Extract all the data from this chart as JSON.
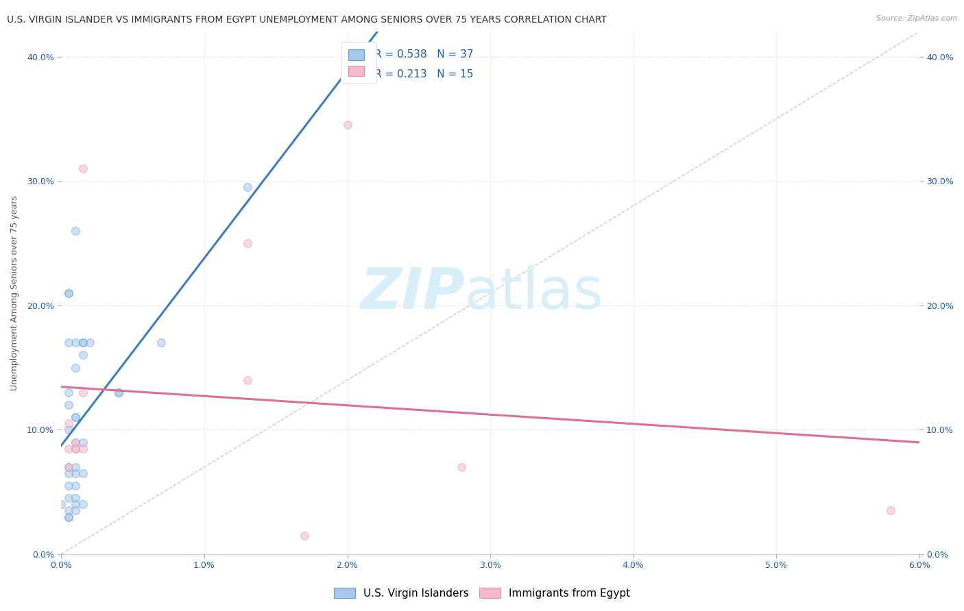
{
  "title": "U.S. VIRGIN ISLANDER VS IMMIGRANTS FROM EGYPT UNEMPLOYMENT AMONG SENIORS OVER 75 YEARS CORRELATION CHART",
  "source": "Source: ZipAtlas.com",
  "xlabel": "",
  "ylabel": "Unemployment Among Seniors over 75 years",
  "xlim": [
    0.0,
    0.06
  ],
  "ylim": [
    0.0,
    0.42
  ],
  "xticks": [
    0.0,
    0.01,
    0.02,
    0.03,
    0.04,
    0.05,
    0.06
  ],
  "yticks": [
    0.0,
    0.1,
    0.2,
    0.3,
    0.4
  ],
  "series1_name": "U.S. Virgin Islanders",
  "series1_color": "#a8c8f0",
  "series1_edge_color": "#5a9fd4",
  "series1_line_color": "#3a7dc4",
  "series1_R": 0.538,
  "series1_N": 37,
  "series2_name": "Immigrants from Egypt",
  "series2_color": "#f5b8cc",
  "series2_edge_color": "#e090b0",
  "series2_line_color": "#e07090",
  "series2_R": 0.213,
  "series2_N": 15,
  "legend_color": "#1a5cb0",
  "diag_line_color": "#cccccc",
  "series1_x": [
    0.0005,
    0.001,
    0.0015,
    0.0005,
    0.001,
    0.0005,
    0.002,
    0.0015,
    0.001,
    0.0005,
    0.0005,
    0.001,
    0.0015,
    0.001,
    0.0005,
    0.001,
    0.0005,
    0.0015,
    0.001,
    0.001,
    0.0005,
    0.001,
    0.0015,
    0.0005,
    0.0005,
    0.001,
    0.0005,
    0.001,
    0.0015,
    0.001,
    0.013,
    0.007,
    0.004,
    0.004,
    0.0,
    0.0005,
    0.0005
  ],
  "series1_y": [
    0.21,
    0.26,
    0.17,
    0.21,
    0.17,
    0.17,
    0.17,
    0.16,
    0.15,
    0.13,
    0.12,
    0.11,
    0.17,
    0.11,
    0.1,
    0.09,
    0.07,
    0.09,
    0.07,
    0.065,
    0.065,
    0.055,
    0.065,
    0.055,
    0.045,
    0.045,
    0.035,
    0.04,
    0.04,
    0.035,
    0.295,
    0.17,
    0.13,
    0.13,
    0.04,
    0.03,
    0.03
  ],
  "series2_x": [
    0.0005,
    0.001,
    0.0005,
    0.0005,
    0.0015,
    0.0015,
    0.001,
    0.013,
    0.001,
    0.0015,
    0.013,
    0.02,
    0.028,
    0.058,
    0.017
  ],
  "series2_y": [
    0.105,
    0.09,
    0.085,
    0.07,
    0.13,
    0.085,
    0.085,
    0.14,
    0.085,
    0.31,
    0.25,
    0.345,
    0.07,
    0.035,
    0.015
  ],
  "background_color": "#ffffff",
  "grid_color": "#e8e8e8",
  "title_fontsize": 10,
  "axis_label_fontsize": 9,
  "tick_fontsize": 9,
  "legend_fontsize": 11,
  "marker_size": 70,
  "marker_alpha": 0.55,
  "watermark_zip": "ZIP",
  "watermark_atlas": "atlas",
  "watermark_color": "#d8eef8",
  "watermark_fontsize": 60
}
